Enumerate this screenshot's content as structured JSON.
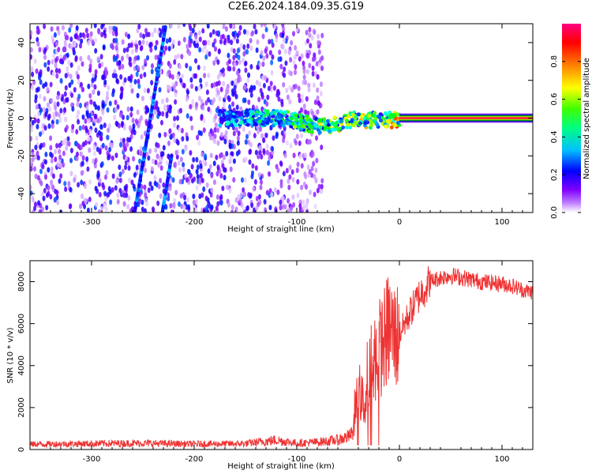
{
  "title": "C2E6.2024.184.09.35.G19",
  "colors": {
    "snr_line": "#ee3333",
    "frame": "#000000",
    "colormap": [
      "#ffffff",
      "#7f00ff",
      "#0000ff",
      "#00ffff",
      "#00ff00",
      "#ffff00",
      "#ff8000",
      "#ff0000",
      "#ff0080"
    ]
  },
  "chart_data": [
    {
      "type": "heatmap",
      "xlabel": "Height of straight line (km)",
      "ylabel": "Frequency (Hz)",
      "xlim": [
        -360,
        130
      ],
      "ylim": [
        -50,
        50
      ],
      "x_ticks": [
        -300,
        -200,
        -100,
        0,
        100
      ],
      "y_ticks": [
        -40,
        -20,
        0,
        20,
        40
      ],
      "colorbar": {
        "label": "Normalized spectral amplitude",
        "range": [
          0,
          1
        ],
        "ticks": [
          "0.0",
          "0.2",
          "0.4",
          "0.6",
          "0.8"
        ],
        "tick_values": [
          0.0,
          0.2,
          0.4,
          0.6,
          0.8
        ]
      },
      "features": {
        "noise_region_x": [
          -360,
          -75
        ],
        "steep_line_1": {
          "x": [
            -258,
            -228
          ],
          "y": [
            -50,
            48
          ]
        },
        "steep_line_2": {
          "x": [
            -231,
            -222
          ],
          "y": [
            -50,
            -20
          ]
        },
        "direct_signal": {
          "x": [
            -175,
            130
          ],
          "y_center": [
            -2,
            0
          ],
          "peak_amplitude": 1.0
        },
        "solid_line_x": [
          0,
          130
        ]
      }
    },
    {
      "type": "line",
      "xlabel": "Height of straight line (km)",
      "ylabel": "SNR (10 * v/v)",
      "xlim": [
        -360,
        130
      ],
      "ylim": [
        0,
        9000
      ],
      "x_ticks": [
        -300,
        -200,
        -100,
        0,
        100
      ],
      "y_ticks": [
        0,
        2000,
        4000,
        6000,
        8000
      ],
      "series": [
        {
          "x": [
            -360,
            -300,
            -250,
            -200,
            -150,
            -120,
            -100,
            -80,
            -60,
            -50,
            -45,
            -40,
            -35,
            -30,
            -25,
            -20,
            -15,
            -10,
            -5,
            0,
            10,
            20,
            30,
            40,
            50,
            60,
            70,
            80,
            90,
            100,
            110,
            120,
            130
          ],
          "y": [
            250,
            280,
            300,
            260,
            280,
            450,
            300,
            350,
            450,
            600,
            800,
            3000,
            2000,
            3000,
            4000,
            4800,
            5200,
            5800,
            5400,
            5500,
            6500,
            7400,
            8000,
            8200,
            8300,
            8200,
            8100,
            8000,
            7950,
            7900,
            7800,
            7600,
            7500
          ]
        }
      ]
    }
  ]
}
